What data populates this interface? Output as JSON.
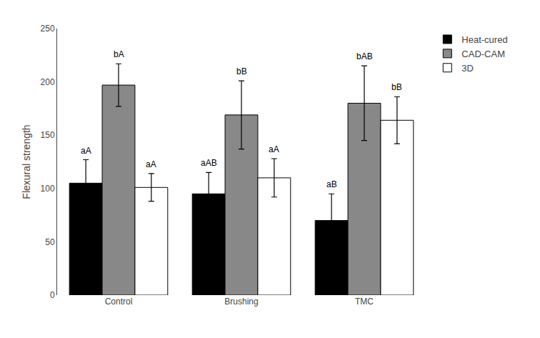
{
  "chart_data": {
    "type": "bar",
    "categories": [
      "Control",
      "Brushing",
      "TMC"
    ],
    "series": [
      {
        "name": "Heat-cured",
        "color": "#000000",
        "values": [
          105,
          95,
          70
        ],
        "errors": [
          22,
          20,
          25
        ],
        "annotations": [
          "aA",
          "aAB",
          "aB"
        ]
      },
      {
        "name": "CAD-CAM",
        "color": "#888888",
        "values": [
          197,
          169,
          180
        ],
        "errors": [
          20,
          32,
          35
        ],
        "annotations": [
          "bA",
          "bB",
          "bAB"
        ]
      },
      {
        "name": "3D",
        "color": "#ffffff",
        "values": [
          101,
          110,
          164
        ],
        "errors": [
          13,
          18,
          22
        ],
        "annotations": [
          "aA",
          "aA",
          "bB"
        ]
      }
    ],
    "ylabel": "Flexural strength",
    "ylim": [
      0,
      250
    ],
    "yticks": [
      0,
      50,
      100,
      150,
      200,
      250
    ],
    "grid": false,
    "legend": "upper right"
  }
}
